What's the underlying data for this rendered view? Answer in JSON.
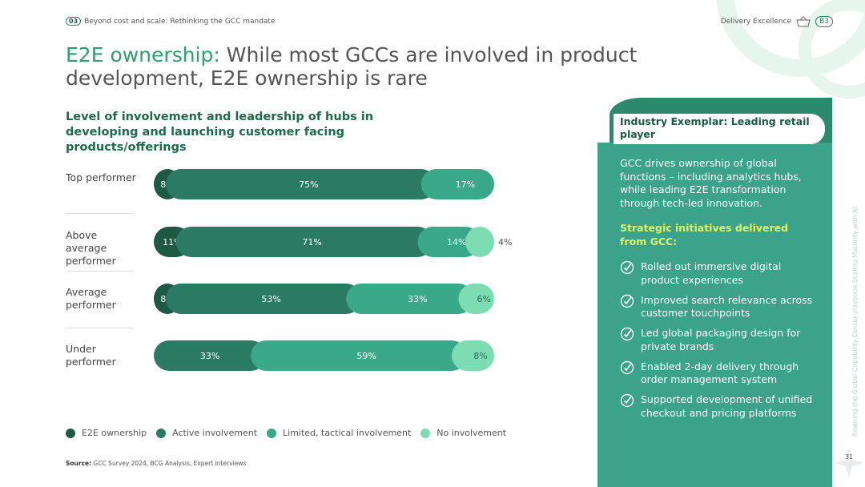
{
  "header": {
    "section_number": "03",
    "section_title": "Beyond cost and scale: Rethinking the GCC mandate",
    "topic": "Delivery Excellence",
    "code": "B3"
  },
  "title": {
    "highlight": "E2E ownership:",
    "text": "While most GCCs are involved in product development, E2E ownership is rare"
  },
  "chart_data": {
    "type": "stacked-bar-horizontal",
    "title": "Level of involvement and leadership of hubs in developing and launching customer facing products/offerings",
    "categories": [
      "Top performer",
      "Above average performer",
      "Average performer",
      "Under performer"
    ],
    "xlim": [
      0,
      100
    ],
    "series": [
      {
        "name": "E2E ownership",
        "color": "#1c5a44",
        "values": [
          8,
          11,
          8,
          null
        ],
        "value_labels": [
          "8%",
          "11%",
          "8%",
          null
        ]
      },
      {
        "name": "Active involvement",
        "color": "#2b7a64",
        "values": [
          75,
          71,
          53,
          33
        ],
        "value_labels": [
          "75%",
          "71%",
          "53%",
          "33%"
        ]
      },
      {
        "name": "Limited, tactical involvement",
        "color": "#3aa98a",
        "values": [
          17,
          14,
          33,
          59
        ],
        "value_labels": [
          "17%",
          "14%",
          "33%",
          "59%"
        ]
      },
      {
        "name": "No involvement",
        "color": "#7edcb3",
        "values": [
          null,
          4,
          6,
          8
        ],
        "value_labels": [
          null,
          "4%",
          "6%",
          "8%"
        ]
      }
    ]
  },
  "source": {
    "label": "Source:",
    "text": "GCC Survey 2024, BCG Analysis, Expert Interviews"
  },
  "sidebar": {
    "heading": "Industry Exemplar: Leading retail player",
    "description": "GCC drives ownership of global functions – including analytics hubs, while leading E2E transformation through tech-led innovation.",
    "subheading": "Strategic initiatives delivered from GCC:",
    "initiatives": [
      "Rolled out immersive digital product experiences",
      "Improved search relevance across customer touchpoints",
      "Led global packaging design for private brands",
      "Enabled 2-day delivery through order management system",
      "Supported development of unified checkout and pricing platforms"
    ]
  },
  "footer": {
    "vertical_text": "Rewiring the Global Capability Center playbook Scaling Maturity with AI",
    "page_number": "31"
  }
}
